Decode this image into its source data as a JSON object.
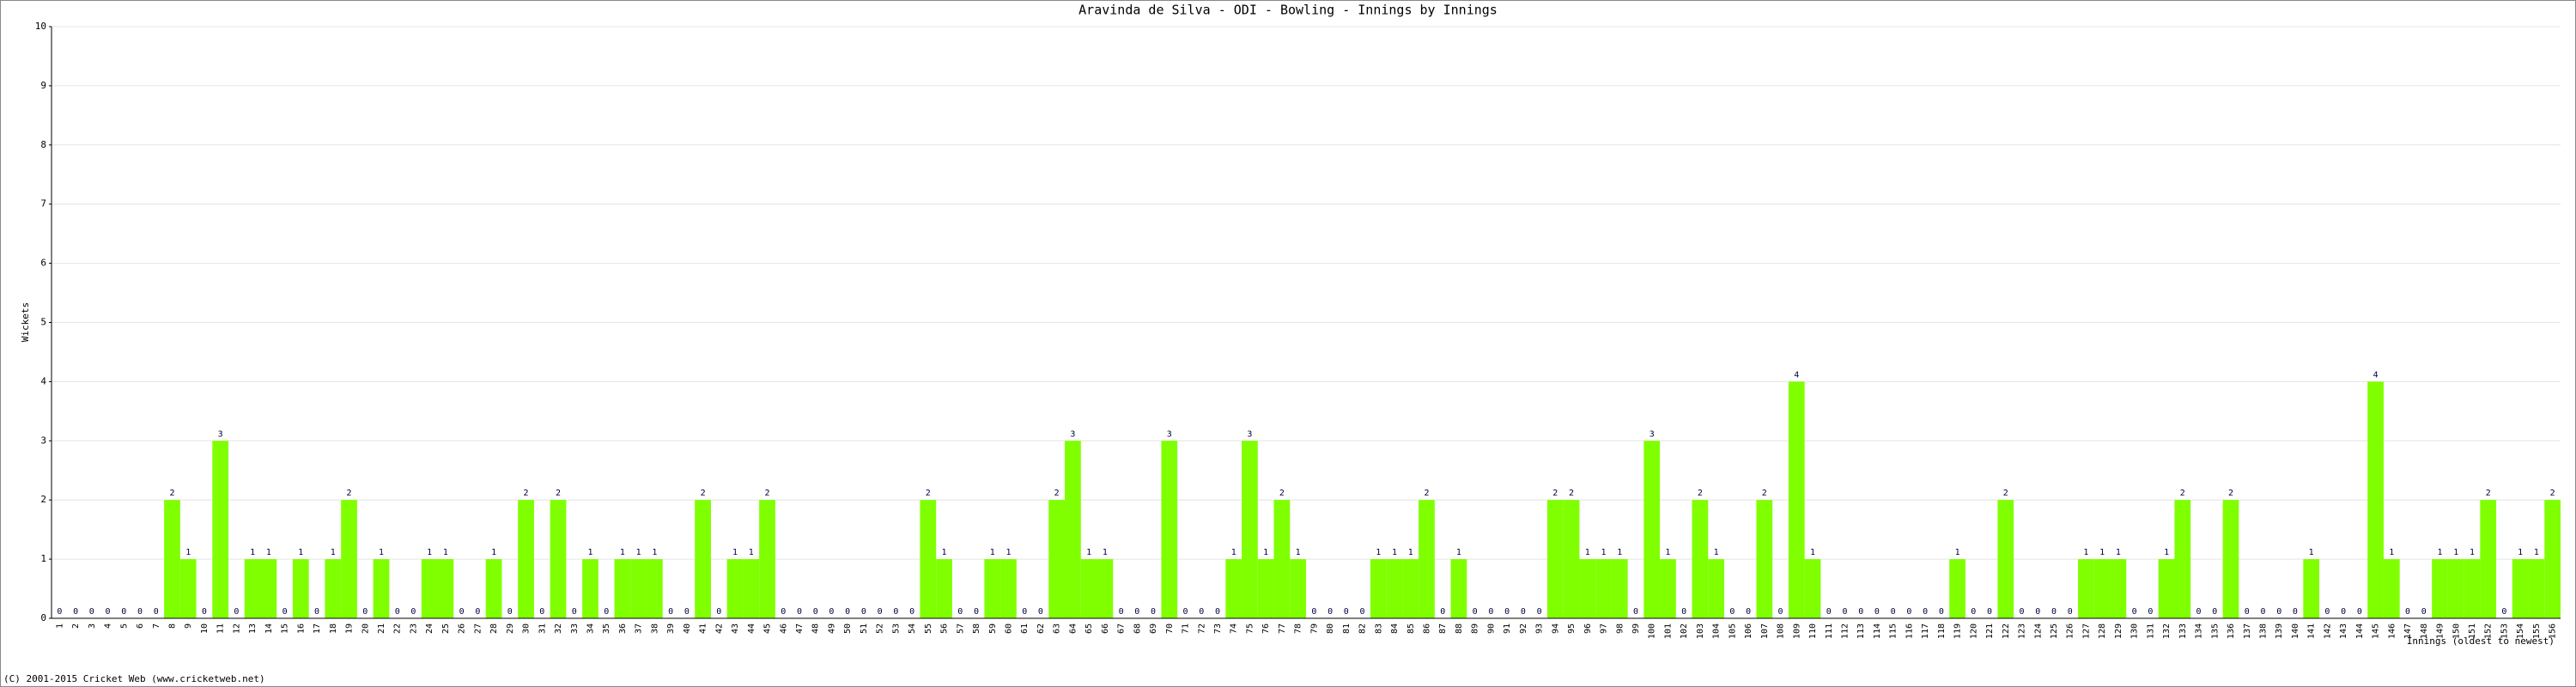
{
  "chart_data": {
    "type": "bar",
    "title": "Aravinda de Silva - ODI - Bowling - Innings by Innings",
    "y_label": "Wickets",
    "x_label": "Innings (oldest to newest)",
    "footer": "(C) 2001-2015 Cricket Web (www.cricketweb.net)",
    "color": "#80ff00",
    "grid": true,
    "ylim": [
      0,
      10
    ],
    "yticks": [
      0,
      1,
      2,
      3,
      4,
      5,
      6,
      7,
      8,
      9,
      10
    ],
    "categories": [
      1,
      2,
      3,
      4,
      5,
      6,
      7,
      8,
      9,
      10,
      11,
      12,
      13,
      14,
      15,
      16,
      17,
      18,
      19,
      20,
      21,
      22,
      23,
      24,
      25,
      26,
      27,
      28,
      29,
      30,
      31,
      32,
      33,
      34,
      35,
      36,
      37,
      38,
      39,
      40,
      41,
      42,
      43,
      44,
      45,
      46,
      47,
      48,
      49,
      50,
      51,
      52,
      53,
      54,
      55,
      56,
      57,
      58,
      59,
      60,
      61,
      62,
      63,
      64,
      65,
      66,
      67,
      68,
      69,
      70,
      71,
      72,
      73,
      74,
      75,
      76,
      77,
      78,
      79,
      80,
      81,
      82,
      83,
      84,
      85,
      86,
      87,
      88,
      89,
      90,
      91,
      92,
      93,
      94,
      95,
      96,
      97,
      98,
      99,
      100,
      101,
      102,
      103,
      104,
      105,
      106,
      107,
      108,
      109,
      110,
      111,
      112,
      113,
      114,
      115,
      116,
      117,
      118,
      119,
      120,
      121,
      122,
      123,
      124,
      125,
      126,
      127,
      128,
      129,
      130,
      131,
      132,
      133,
      134,
      135,
      136,
      137,
      138,
      139,
      140,
      141,
      142,
      143,
      144,
      145,
      146,
      147,
      148,
      149,
      150,
      151,
      152,
      153,
      154,
      155,
      156
    ],
    "values": [
      0,
      0,
      0,
      0,
      0,
      0,
      0,
      2,
      1,
      0,
      3,
      0,
      1,
      1,
      0,
      1,
      0,
      1,
      2,
      0,
      1,
      0,
      0,
      1,
      1,
      0,
      0,
      1,
      0,
      2,
      0,
      2,
      0,
      1,
      0,
      1,
      1,
      1,
      0,
      0,
      2,
      0,
      1,
      1,
      2,
      0,
      0,
      0,
      0,
      0,
      0,
      0,
      0,
      0,
      2,
      1,
      0,
      0,
      1,
      1,
      0,
      0,
      2,
      3,
      1,
      1,
      0,
      0,
      0,
      3,
      0,
      0,
      0,
      1,
      3,
      1,
      2,
      1,
      0,
      0,
      0,
      0,
      1,
      1,
      1,
      2,
      0,
      1,
      0,
      0,
      0,
      0,
      0,
      2,
      2,
      1,
      1,
      1,
      0,
      3,
      1,
      0,
      2,
      1,
      0,
      0,
      2,
      0,
      4,
      1,
      0,
      0,
      0,
      0,
      0,
      0,
      0,
      0,
      1,
      0,
      0,
      2,
      0,
      0,
      0,
      0,
      1,
      1,
      1,
      0,
      0,
      1,
      2,
      0,
      0,
      2,
      0,
      0,
      0,
      0,
      1,
      0,
      0,
      0,
      4,
      1,
      0,
      0,
      1,
      1,
      1,
      2,
      0,
      1,
      1,
      2
    ]
  }
}
